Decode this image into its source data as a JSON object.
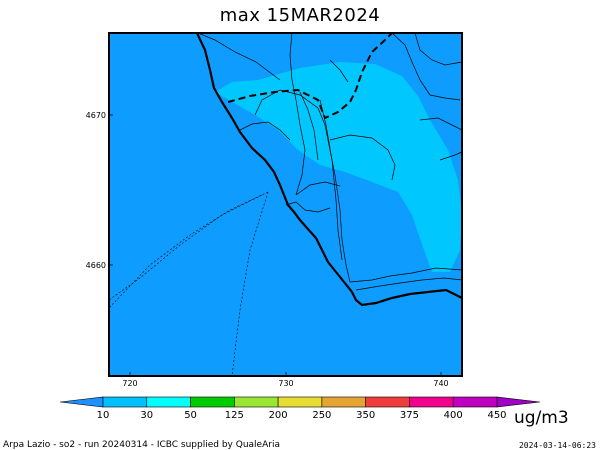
{
  "title": "max 15MAR2024",
  "x_axis": {
    "ticks": [
      "720",
      "730",
      "740"
    ]
  },
  "y_axis": {
    "ticks": [
      "4670",
      "4660"
    ]
  },
  "colorbar": {
    "unit": "ug/m3",
    "thresholds": [
      "10",
      "30",
      "50",
      "125",
      "200",
      "250",
      "350",
      "375",
      "400",
      "450"
    ],
    "colors": [
      "#1e90ff",
      "#00bfff",
      "#00ffff",
      "#00cc00",
      "#99e633",
      "#e6dc32",
      "#e6a532",
      "#f03c3c",
      "#f0008c",
      "#c000c0",
      "#a000c8"
    ]
  },
  "map": {
    "background_color": "#0f9cff",
    "plume_color": "#00c8ff",
    "plume_light_color": "#00d8ff"
  },
  "footer": {
    "left": "Arpa Lazio - so2 - run 20240314 - ICBC supplied by QualeAria",
    "right": "2024-03-14-06:23"
  }
}
